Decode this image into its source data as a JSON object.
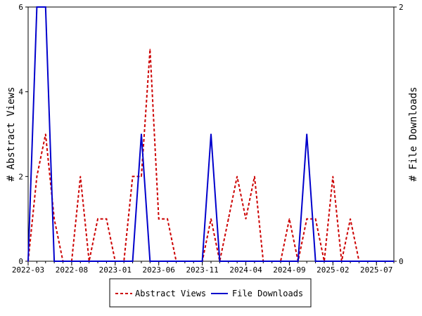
{
  "chart_data": {
    "type": "line",
    "x": [
      "2022-03",
      "2022-04",
      "2022-05",
      "2022-06",
      "2022-07",
      "2022-08",
      "2022-09",
      "2022-10",
      "2022-11",
      "2022-12",
      "2023-01",
      "2023-02",
      "2023-03",
      "2023-04",
      "2023-05",
      "2023-06",
      "2023-07",
      "2023-08",
      "2023-09",
      "2023-10",
      "2023-11",
      "2023-12",
      "2024-01",
      "2024-02",
      "2024-03",
      "2024-04",
      "2024-05",
      "2024-06",
      "2024-07",
      "2024-08",
      "2024-09",
      "2024-10",
      "2024-11",
      "2024-12",
      "2025-01",
      "2025-02",
      "2025-03",
      "2025-04",
      "2025-05",
      "2025-06",
      "2025-07",
      "2025-08",
      "2025-09"
    ],
    "x_tick_labels": [
      "2022-03",
      "2022-08",
      "2023-01",
      "2023-06",
      "2023-11",
      "2024-04",
      "2024-09",
      "2025-02",
      "2025-07"
    ],
    "series": [
      {
        "name": "Abstract Views",
        "axis": "left",
        "color": "#cc0000",
        "style": "dashed",
        "values": [
          0,
          2,
          3,
          1,
          0,
          0,
          2,
          0,
          1,
          1,
          0,
          0,
          2,
          2,
          5,
          1,
          1,
          0,
          0,
          0,
          0,
          1,
          0,
          1,
          2,
          1,
          2,
          0,
          0,
          0,
          1,
          0,
          1,
          1,
          0,
          2,
          0,
          1,
          0,
          0,
          0,
          0,
          0
        ]
      },
      {
        "name": "File Downloads",
        "axis": "right",
        "color": "#0000cc",
        "style": "solid",
        "values": [
          0,
          2,
          2,
          0,
          0,
          0,
          0,
          0,
          0,
          0,
          0,
          0,
          0,
          1,
          0,
          0,
          0,
          0,
          0,
          0,
          0,
          1,
          0,
          0,
          0,
          0,
          0,
          0,
          0,
          0,
          0,
          0,
          1,
          0,
          0,
          0,
          0,
          0,
          0,
          0,
          0,
          0,
          0
        ]
      }
    ],
    "ylabel": "# Abstract Views",
    "ylabel_right": "# File Downloads",
    "ylim": [
      0,
      6
    ],
    "yticks": [
      0,
      2,
      4,
      6
    ],
    "ylim_right": [
      0,
      2
    ],
    "yticks_right": [
      0,
      2
    ],
    "grid": false,
    "legend_position": "bottom-center"
  }
}
